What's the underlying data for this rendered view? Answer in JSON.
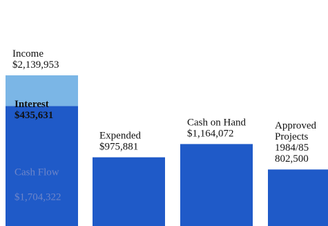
{
  "chart_data": {
    "type": "bar",
    "title": "",
    "xlabel": "",
    "ylabel": "",
    "grid": false,
    "legend": "none",
    "categories": [
      "Income",
      "Expended",
      "Cash on Hand",
      "Approved Projects 1984/85"
    ],
    "bars": [
      {
        "category": "Income",
        "total": 2139953,
        "label_lines": [
          "Income",
          "$2,139,953"
        ],
        "segments": [
          {
            "name": "Cash Flow",
            "value": 1704322,
            "color": "#1f5ac8",
            "label_lines": [
              "Cash Flow",
              "$1,704,322"
            ],
            "label_inside": true
          },
          {
            "name": "Interest",
            "value": 435631,
            "color": "#7bb6e6",
            "label_lines": [
              "Interest",
              "$435,631"
            ],
            "label_inside": true
          }
        ]
      },
      {
        "category": "Expended",
        "value": 975881,
        "color": "#1f5ac8",
        "label_lines": [
          "Expended",
          "$975,881"
        ]
      },
      {
        "category": "Cash on Hand",
        "value": 1164072,
        "color": "#1f5ac8",
        "label_lines": [
          "Cash on Hand",
          "$1,164,072"
        ]
      },
      {
        "category": "Approved Projects 1984/85",
        "value": 802500,
        "color": "#1f5ac8",
        "label_lines": [
          "Approved",
          "Projects",
          "1984/85",
          "802,500"
        ]
      }
    ]
  }
}
